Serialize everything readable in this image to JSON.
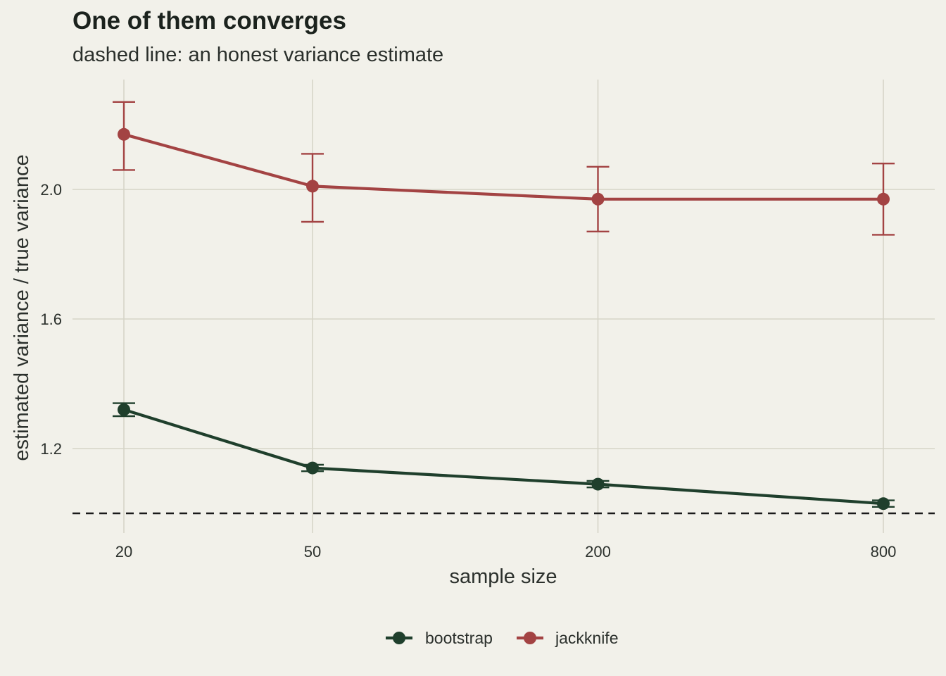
{
  "chart_data": {
    "type": "line",
    "title": "One of them converges",
    "subtitle": "dashed line: an honest variance estimate",
    "xlabel": "sample size",
    "ylabel": "estimated variance / true variance",
    "x": [
      20,
      50,
      200,
      800
    ],
    "x_scale": "log",
    "x_tick_labels": [
      "20",
      "50",
      "200",
      "800"
    ],
    "ylim": [
      0.96,
      2.33
    ],
    "y_ticks": [
      1.2,
      1.6,
      2.0
    ],
    "y_tick_labels": [
      "1.2",
      "1.6",
      "2.0"
    ],
    "grid": true,
    "reference_line": {
      "y": 1.0,
      "style": "dashed"
    },
    "legend_position": "bottom",
    "series": [
      {
        "name": "bootstrap",
        "color": "#1f3f2c",
        "values": [
          1.32,
          1.14,
          1.09,
          1.03
        ],
        "lower": [
          1.3,
          1.13,
          1.08,
          1.02
        ],
        "upper": [
          1.34,
          1.15,
          1.1,
          1.04
        ]
      },
      {
        "name": "jackknife",
        "color": "#a34343",
        "values": [
          2.17,
          2.01,
          1.97,
          1.97
        ],
        "lower": [
          2.06,
          1.9,
          1.87,
          1.86
        ],
        "upper": [
          2.27,
          2.11,
          2.07,
          2.08
        ]
      }
    ]
  }
}
